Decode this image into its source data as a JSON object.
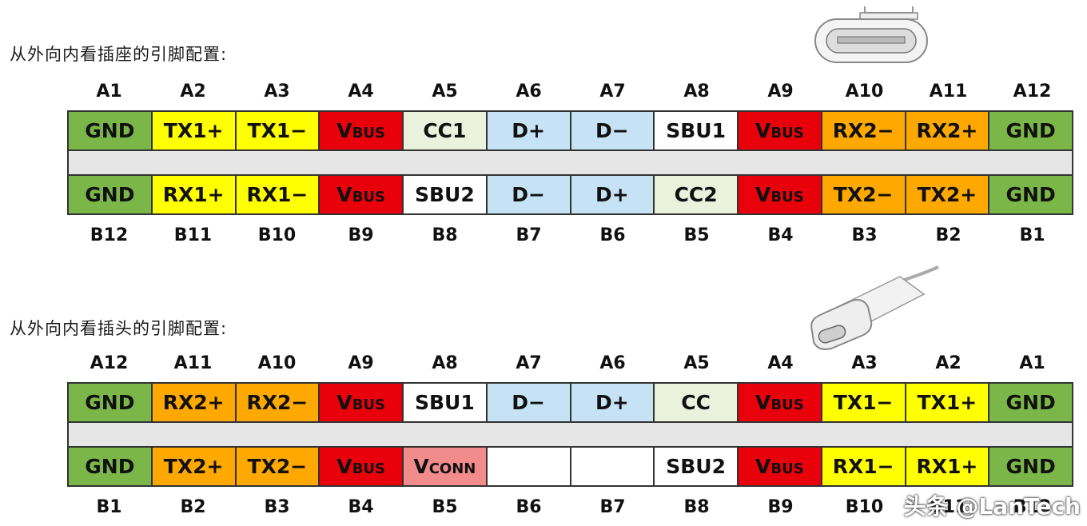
{
  "colors": {
    "gnd": "#7ab648",
    "tx": "#ffff00",
    "rx": "#ffff00",
    "vbus": "#e8000b",
    "cc": "#eaf1dd",
    "d": "#c5e3f5",
    "sbu": "#ffffff",
    "hs": "#ffa800",
    "vconn": "#f28c8c",
    "empty": "#ffffff"
  },
  "receptacle": {
    "title": "从外向内看插座的引脚配置:",
    "top_labels": [
      "A1",
      "A2",
      "A3",
      "A4",
      "A5",
      "A6",
      "A7",
      "A8",
      "A9",
      "A10",
      "A11",
      "A12"
    ],
    "top_pins": [
      {
        "text": "GND",
        "color": "gnd"
      },
      {
        "text": "TX1+",
        "color": "tx"
      },
      {
        "text": "TX1−",
        "color": "tx"
      },
      {
        "text": "Vbus",
        "color": "vbus",
        "cls": "vbus"
      },
      {
        "text": "CC1",
        "color": "cc"
      },
      {
        "text": "D+",
        "color": "d"
      },
      {
        "text": "D−",
        "color": "d"
      },
      {
        "text": "SBU1",
        "color": "sbu"
      },
      {
        "text": "Vbus",
        "color": "vbus",
        "cls": "vbus"
      },
      {
        "text": "RX2−",
        "color": "hs"
      },
      {
        "text": "RX2+",
        "color": "hs"
      },
      {
        "text": "GND",
        "color": "gnd"
      }
    ],
    "bottom_pins": [
      {
        "text": "GND",
        "color": "gnd"
      },
      {
        "text": "RX1+",
        "color": "rx"
      },
      {
        "text": "RX1−",
        "color": "rx"
      },
      {
        "text": "Vbus",
        "color": "vbus",
        "cls": "vbus"
      },
      {
        "text": "SBU2",
        "color": "sbu"
      },
      {
        "text": "D−",
        "color": "d"
      },
      {
        "text": "D+",
        "color": "d"
      },
      {
        "text": "CC2",
        "color": "cc"
      },
      {
        "text": "Vbus",
        "color": "vbus",
        "cls": "vbus"
      },
      {
        "text": "TX2−",
        "color": "hs"
      },
      {
        "text": "TX2+",
        "color": "hs"
      },
      {
        "text": "GND",
        "color": "gnd"
      }
    ],
    "bottom_labels": [
      "B12",
      "B11",
      "B10",
      "B9",
      "B8",
      "B7",
      "B6",
      "B5",
      "B4",
      "B3",
      "B2",
      "B1"
    ]
  },
  "plug": {
    "title": "从外向内看插头的引脚配置:",
    "top_labels": [
      "A12",
      "A11",
      "A10",
      "A9",
      "A8",
      "A7",
      "A6",
      "A5",
      "A4",
      "A3",
      "A2",
      "A1"
    ],
    "top_pins": [
      {
        "text": "GND",
        "color": "gnd"
      },
      {
        "text": "RX2+",
        "color": "hs"
      },
      {
        "text": "RX2−",
        "color": "hs"
      },
      {
        "text": "Vbus",
        "color": "vbus",
        "cls": "vbus"
      },
      {
        "text": "SBU1",
        "color": "sbu"
      },
      {
        "text": "D−",
        "color": "d"
      },
      {
        "text": "D+",
        "color": "d"
      },
      {
        "text": "CC",
        "color": "cc"
      },
      {
        "text": "Vbus",
        "color": "vbus",
        "cls": "vbus"
      },
      {
        "text": "TX1−",
        "color": "tx"
      },
      {
        "text": "TX1+",
        "color": "tx"
      },
      {
        "text": "GND",
        "color": "gnd"
      }
    ],
    "bottom_pins": [
      {
        "text": "GND",
        "color": "gnd"
      },
      {
        "text": "TX2+",
        "color": "hs"
      },
      {
        "text": "TX2−",
        "color": "hs"
      },
      {
        "text": "Vbus",
        "color": "vbus",
        "cls": "vbus"
      },
      {
        "text": "Vconn",
        "color": "vconn",
        "cls": "vconn"
      },
      {
        "text": "",
        "color": "empty"
      },
      {
        "text": "",
        "color": "empty"
      },
      {
        "text": "SBU2",
        "color": "sbu"
      },
      {
        "text": "Vbus",
        "color": "vbus",
        "cls": "vbus"
      },
      {
        "text": "RX1−",
        "color": "rx"
      },
      {
        "text": "RX1+",
        "color": "rx"
      },
      {
        "text": "GND",
        "color": "gnd"
      }
    ],
    "bottom_labels": [
      "B1",
      "B2",
      "B3",
      "B4",
      "B5",
      "B6",
      "B7",
      "B8",
      "B9",
      "B10",
      "B11",
      "B12"
    ]
  },
  "watermark": "头条 @LanTech"
}
